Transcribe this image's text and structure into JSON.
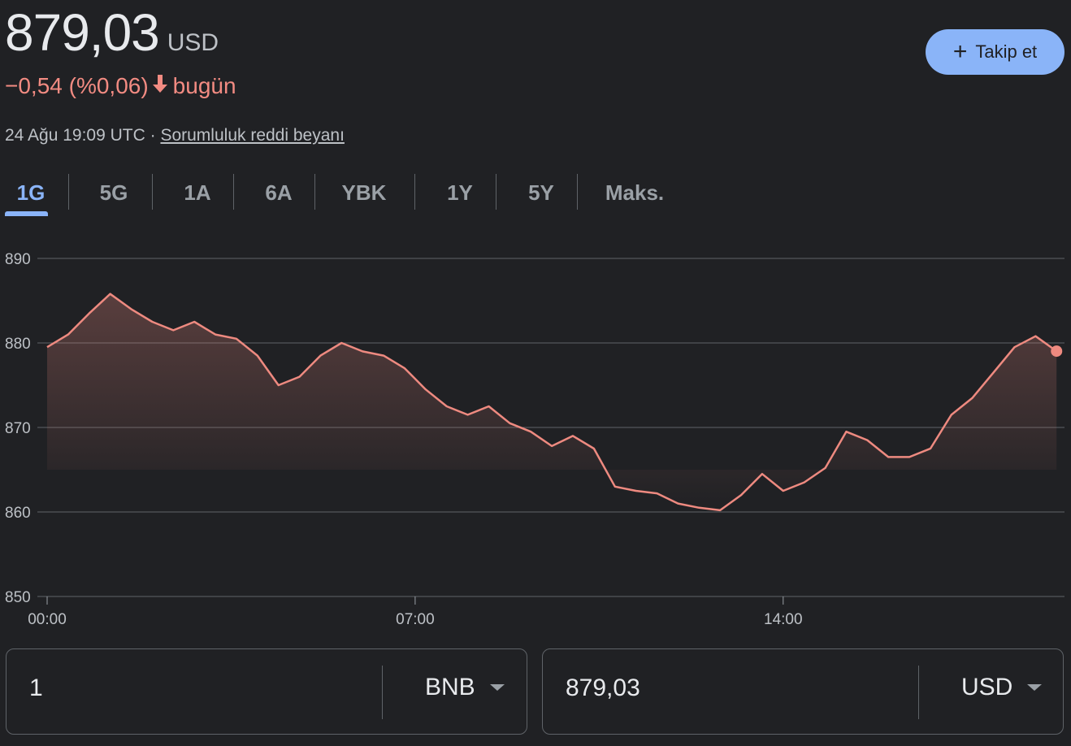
{
  "header": {
    "price": "879,03",
    "currency": "USD",
    "change": "−0,54 (%0,06)",
    "change_suffix": "bugün",
    "timestamp": "24 Ağu 19:09 UTC ·",
    "disclaimer": "Sorumluluk reddi beyanı",
    "follow_label": "Takip et"
  },
  "tabs": [
    "1G",
    "5G",
    "1A",
    "6A",
    "YBK",
    "1Y",
    "5Y",
    "Maks."
  ],
  "active_tab": "1G",
  "colors": {
    "line": "#ee8a80",
    "accent": "#8ab4f8",
    "negative": "#f28b82",
    "background": "#202124"
  },
  "chart_data": {
    "type": "area",
    "xlabel": "",
    "ylabel": "",
    "ylim": [
      850,
      890
    ],
    "y_ticks": [
      850,
      860,
      870,
      880,
      890
    ],
    "x_ticks": [
      {
        "label": "00:00",
        "hour": 0
      },
      {
        "label": "07:00",
        "hour": 7
      },
      {
        "label": "14:00",
        "hour": 14
      }
    ],
    "grid": true,
    "x": [
      0,
      0.4,
      0.8,
      1.2,
      1.6,
      2.0,
      2.4,
      2.8,
      3.2,
      3.6,
      4.0,
      4.4,
      4.8,
      5.2,
      5.6,
      6.0,
      6.4,
      6.8,
      7.2,
      7.6,
      8.0,
      8.4,
      8.8,
      9.2,
      9.6,
      10.0,
      10.4,
      10.8,
      11.2,
      11.6,
      12.0,
      12.4,
      12.8,
      13.2,
      13.6,
      14.0,
      14.4,
      14.8,
      15.2,
      15.6,
      16.0,
      16.4,
      16.8,
      17.2,
      17.6,
      18.0,
      18.4,
      18.8,
      19.2
    ],
    "values": [
      879.5,
      881,
      883.5,
      885.8,
      884,
      882.5,
      881.5,
      882.5,
      881,
      880.5,
      878.5,
      875,
      876,
      878.5,
      880,
      879,
      878.5,
      877,
      874.5,
      872.5,
      871.5,
      872.5,
      870.5,
      869.5,
      867.8,
      869,
      867.5,
      863,
      862.5,
      862.2,
      861,
      860.5,
      860.2,
      862,
      864.5,
      862.5,
      863.5,
      865.2,
      869.5,
      868.5,
      866.5,
      866.5,
      867.5,
      871.5,
      873.5,
      876.5,
      879.5,
      880.8,
      879.03
    ]
  },
  "converter": {
    "from_value": "1",
    "from_currency": "BNB",
    "to_value": "879,03",
    "to_currency": "USD"
  }
}
